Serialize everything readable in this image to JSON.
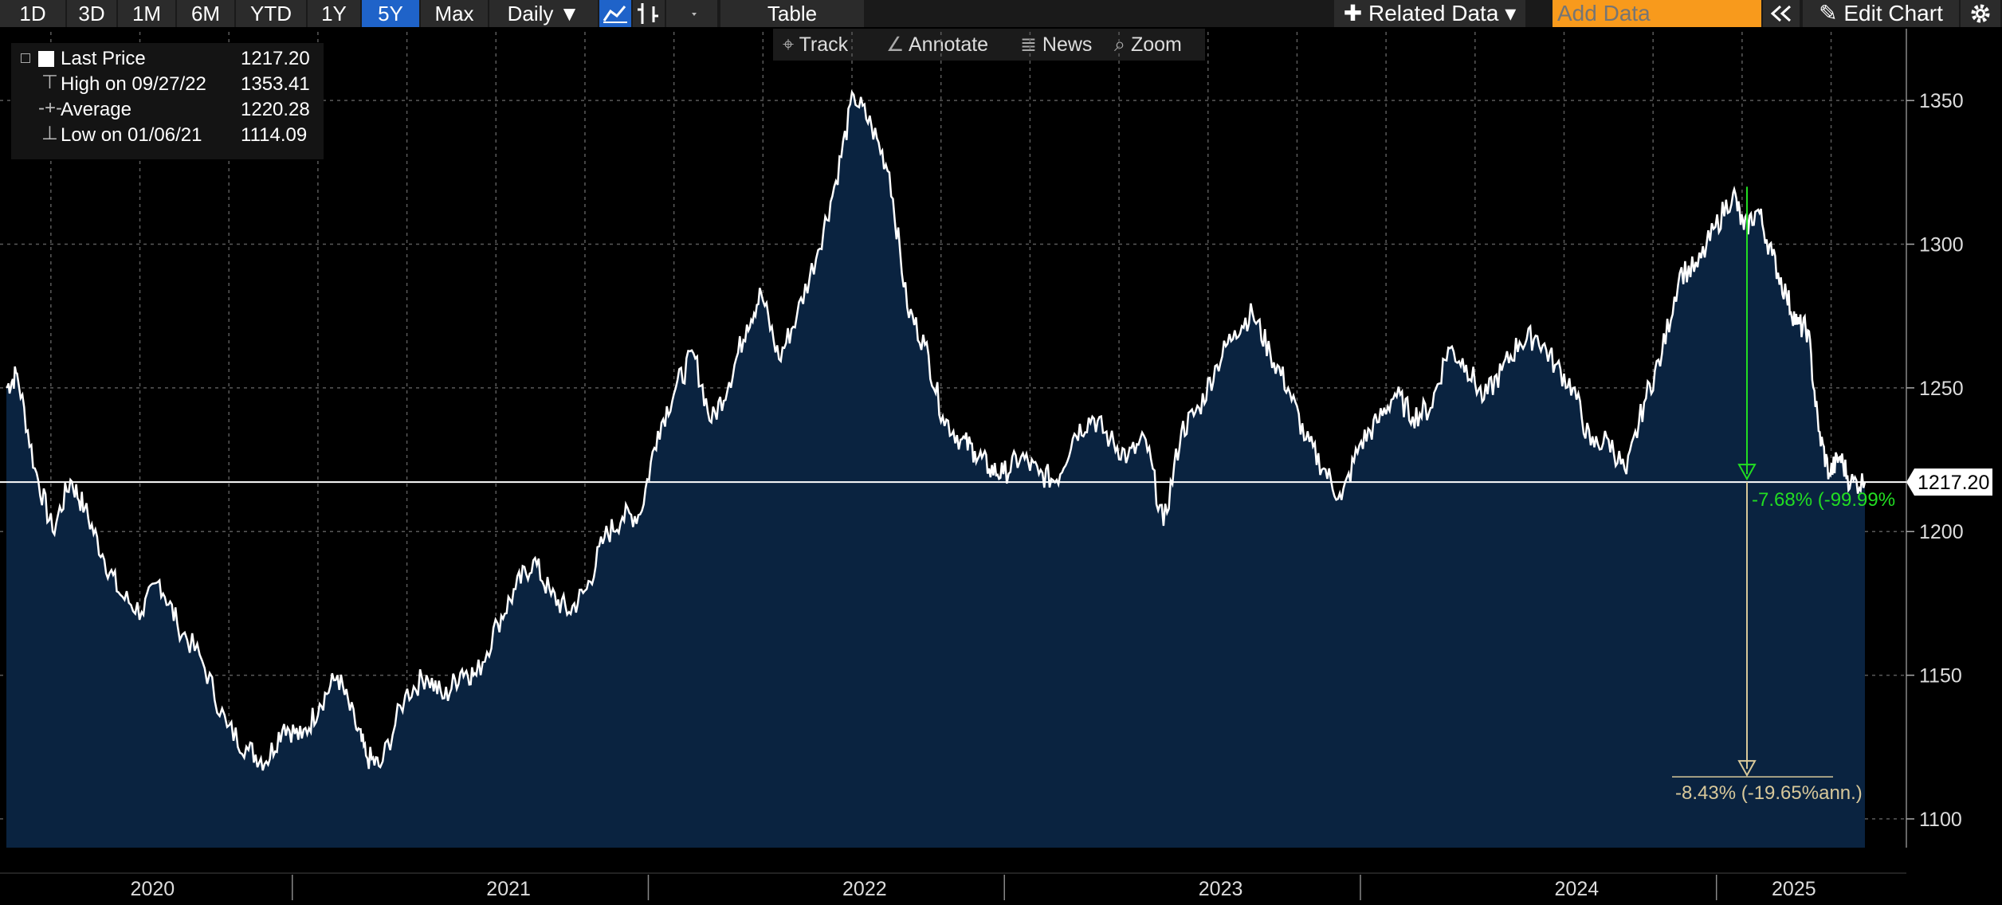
{
  "toolbar": {
    "ranges": [
      "1D",
      "3D",
      "1M",
      "6M",
      "YTD",
      "1Y",
      "5Y",
      "Max"
    ],
    "active_range": "5Y",
    "frequency": "Daily ▼",
    "table_label": "Table",
    "related_data": "✚ Related Data ▾",
    "add_data_placeholder": "Add Data",
    "edit_chart": "✎ Edit Chart",
    "icons": [
      "line-chart-icon",
      "bar-chart-icon",
      "dropdown-icon",
      "collapse-icon",
      "settings-gear-icon"
    ]
  },
  "sub_toolbar": {
    "track": "Track",
    "annotate": "Annotate",
    "news": "News",
    "zoom": "Zoom"
  },
  "legend": {
    "items": [
      {
        "label": "Last Price",
        "value": "1217.20"
      },
      {
        "label": "High on 09/27/22",
        "value": "1353.41"
      },
      {
        "label": "Average",
        "value": "1220.28"
      },
      {
        "label": "Low on 01/06/21",
        "value": "1114.09"
      }
    ]
  },
  "colors": {
    "background": "#000000",
    "area_fill": "#0a2340",
    "line": "#ffffff",
    "grid": "#5a5a5a",
    "green_annotation": "#22dd22",
    "tan_annotation": "#d8c89a",
    "active_button": "#1f63c9",
    "add_data": "#f89a1c"
  },
  "annotations": {
    "change_from_peak": "-7.68% (-99.99%",
    "change_to_low": "-8.43% (-19.65%ann.)"
  },
  "chart_data": {
    "type": "area",
    "title": "",
    "xlabel": "",
    "ylabel": "",
    "ylim": [
      1090,
      1375
    ],
    "yticks": [
      1100,
      1150,
      1200,
      1250,
      1300,
      1350
    ],
    "xtick_labels": [
      "2020",
      "2021",
      "2022",
      "2023",
      "2024",
      "2025"
    ],
    "last_price_label": "1217.20",
    "last_price": 1217.2,
    "grid": true,
    "series": [
      {
        "name": "Last Price",
        "x": [
          2020.0,
          2020.03,
          2020.08,
          2020.13,
          2020.18,
          2020.22,
          2020.27,
          2020.32,
          2020.38,
          2020.43,
          2020.48,
          2020.55,
          2020.62,
          2020.68,
          2020.73,
          2020.78,
          2020.83,
          2020.88,
          2020.93,
          2020.98,
          2021.01,
          2021.05,
          2021.12,
          2021.18,
          2021.23,
          2021.28,
          2021.32,
          2021.38,
          2021.43,
          2021.48,
          2021.53,
          2021.58,
          2021.63,
          2021.68,
          2021.73,
          2021.78,
          2021.83,
          2021.88,
          2021.93,
          2021.98,
          2022.03,
          2022.08,
          2022.12,
          2022.17,
          2022.22,
          2022.28,
          2022.33,
          2022.38,
          2022.43,
          2022.48,
          2022.53,
          2022.58,
          2022.63,
          2022.68,
          2022.72,
          2022.76,
          2022.8,
          2022.85,
          2022.9,
          2022.95,
          2023.0,
          2023.05,
          2023.1,
          2023.15,
          2023.2,
          2023.25,
          2023.3,
          2023.35,
          2023.4,
          2023.45,
          2023.5,
          2023.55,
          2023.6,
          2023.65,
          2023.7,
          2023.75,
          2023.8,
          2023.85,
          2023.9,
          2023.95,
          2024.0,
          2024.05,
          2024.1,
          2024.15,
          2024.2,
          2024.25,
          2024.3,
          2024.35,
          2024.4,
          2024.45,
          2024.5,
          2024.55,
          2024.6,
          2024.65,
          2024.7,
          2024.75,
          2024.8,
          2024.85,
          2024.88,
          2024.92,
          2024.96,
          2025.0,
          2025.03,
          2025.06,
          2025.09,
          2025.12,
          2025.15,
          2025.18,
          2025.22
        ],
        "values": [
          1250,
          1255,
          1222,
          1200,
          1218,
          1208,
          1192,
          1178,
          1172,
          1183,
          1168,
          1155,
          1132,
          1124,
          1120,
          1133,
          1128,
          1140,
          1150,
          1133,
          1122,
          1118,
          1143,
          1150,
          1142,
          1152,
          1150,
          1168,
          1180,
          1190,
          1178,
          1172,
          1180,
          1198,
          1205,
          1206,
          1235,
          1250,
          1262,
          1238,
          1252,
          1272,
          1283,
          1260,
          1275,
          1298,
          1322,
          1352,
          1341,
          1325,
          1278,
          1265,
          1240,
          1232,
          1228,
          1222,
          1220,
          1226,
          1220,
          1218,
          1234,
          1240,
          1232,
          1226,
          1232,
          1202,
          1235,
          1243,
          1258,
          1270,
          1276,
          1262,
          1250,
          1232,
          1222,
          1211,
          1230,
          1238,
          1248,
          1240,
          1243,
          1264,
          1258,
          1246,
          1256,
          1266,
          1268,
          1258,
          1250,
          1230,
          1232,
          1220,
          1245,
          1262,
          1290,
          1292,
          1306,
          1318,
          1305,
          1312,
          1296,
          1282,
          1272,
          1270,
          1235,
          1220,
          1226,
          1217,
          1217.2
        ]
      }
    ]
  }
}
